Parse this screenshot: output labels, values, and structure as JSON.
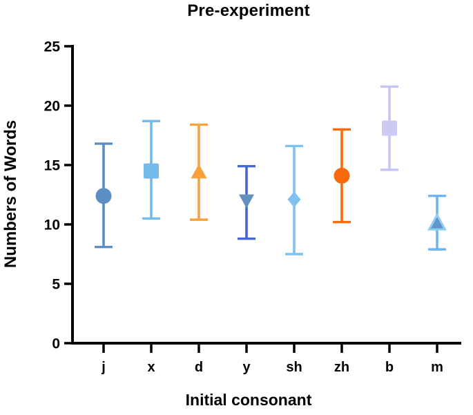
{
  "chart_data": {
    "type": "scatter",
    "subtype": "point-with-error-bars",
    "title": "Pre-experiment",
    "xlabel": "Initial consonant",
    "ylabel": "Numbers of Words",
    "categories": [
      "j",
      "x",
      "d",
      "y",
      "sh",
      "zh",
      "b",
      "m"
    ],
    "ylim": [
      0,
      25
    ],
    "yticks": [
      0,
      5,
      10,
      15,
      20,
      25
    ],
    "grid": false,
    "legend": "none",
    "axis_color": "#000000",
    "points": [
      {
        "category": "j",
        "mean": 12.4,
        "lo": 8.1,
        "hi": 16.8,
        "marker": "circle",
        "color": "#5B8EC4",
        "bar_color": "#5B8EC4"
      },
      {
        "category": "x",
        "mean": 14.5,
        "lo": 10.5,
        "hi": 18.7,
        "marker": "square",
        "color": "#74BAEA",
        "bar_color": "#74BAEA"
      },
      {
        "category": "d",
        "mean": 14.4,
        "lo": 10.4,
        "hi": 18.4,
        "marker": "triangle-up",
        "color": "#F9A13C",
        "bar_color": "#F9A13C"
      },
      {
        "category": "y",
        "mean": 12.0,
        "lo": 8.8,
        "hi": 14.9,
        "marker": "triangle-down",
        "color": "#6191BD",
        "bar_color": "#4566D6"
      },
      {
        "category": "sh",
        "mean": 12.1,
        "lo": 7.5,
        "hi": 16.6,
        "marker": "diamond",
        "color": "#7FC2F0",
        "bar_color": "#7FC2F0"
      },
      {
        "category": "zh",
        "mean": 14.1,
        "lo": 10.2,
        "hi": 18.0,
        "marker": "circle",
        "color": "#F96A0D",
        "bar_color": "#F96A0D"
      },
      {
        "category": "b",
        "mean": 18.1,
        "lo": 14.6,
        "hi": 21.6,
        "marker": "square",
        "color": "#CBCAF4",
        "bar_color": "#C6C4F2"
      },
      {
        "category": "m",
        "mean": 10.1,
        "lo": 7.9,
        "hi": 12.4,
        "marker": "triangle-up",
        "color": "#5F97CC",
        "outline": "#8FCDF4",
        "bar_color": "#6FB4EC"
      }
    ]
  }
}
